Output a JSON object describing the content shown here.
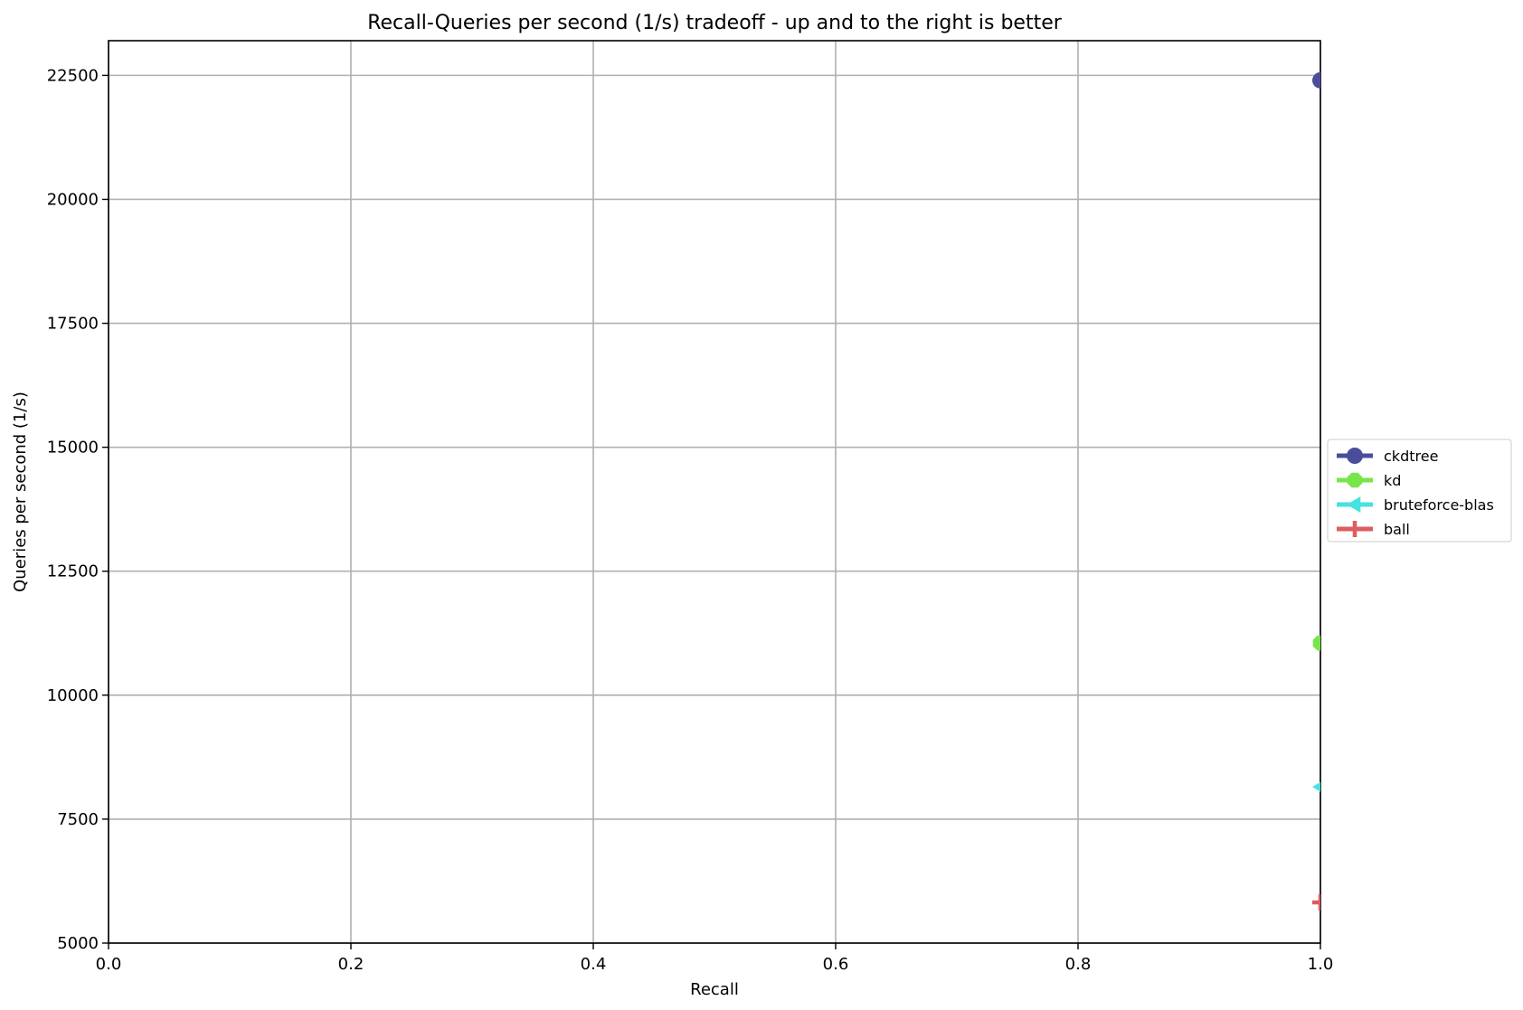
{
  "chart_data": {
    "type": "scatter",
    "title": "Recall-Queries per second (1/s) tradeoff - up and to the right is better",
    "xlabel": "Recall",
    "ylabel": "Queries per second (1/s)",
    "xlim": [
      0.0,
      1.0
    ],
    "ylim": [
      5000,
      23200
    ],
    "xticks": [
      "0.0",
      "0.2",
      "0.4",
      "0.6",
      "0.8",
      "1.0"
    ],
    "yticks": [
      "5000",
      "7500",
      "10000",
      "12500",
      "15000",
      "17500",
      "20000",
      "22500"
    ],
    "grid": true,
    "legend_position": "right",
    "series": [
      {
        "name": "ckdtree",
        "color": "#4a4e9a",
        "marker": "circle",
        "x": [
          1.0
        ],
        "y": [
          22400
        ]
      },
      {
        "name": "kd",
        "color": "#78e64a",
        "marker": "octagon",
        "x": [
          1.0
        ],
        "y": [
          11050
        ]
      },
      {
        "name": "bruteforce-blas",
        "color": "#46e2e0",
        "marker": "triangle-left",
        "x": [
          1.0
        ],
        "y": [
          8150
        ]
      },
      {
        "name": "ball",
        "color": "#dd5d60",
        "marker": "plus",
        "x": [
          1.0
        ],
        "y": [
          5820
        ]
      }
    ]
  }
}
